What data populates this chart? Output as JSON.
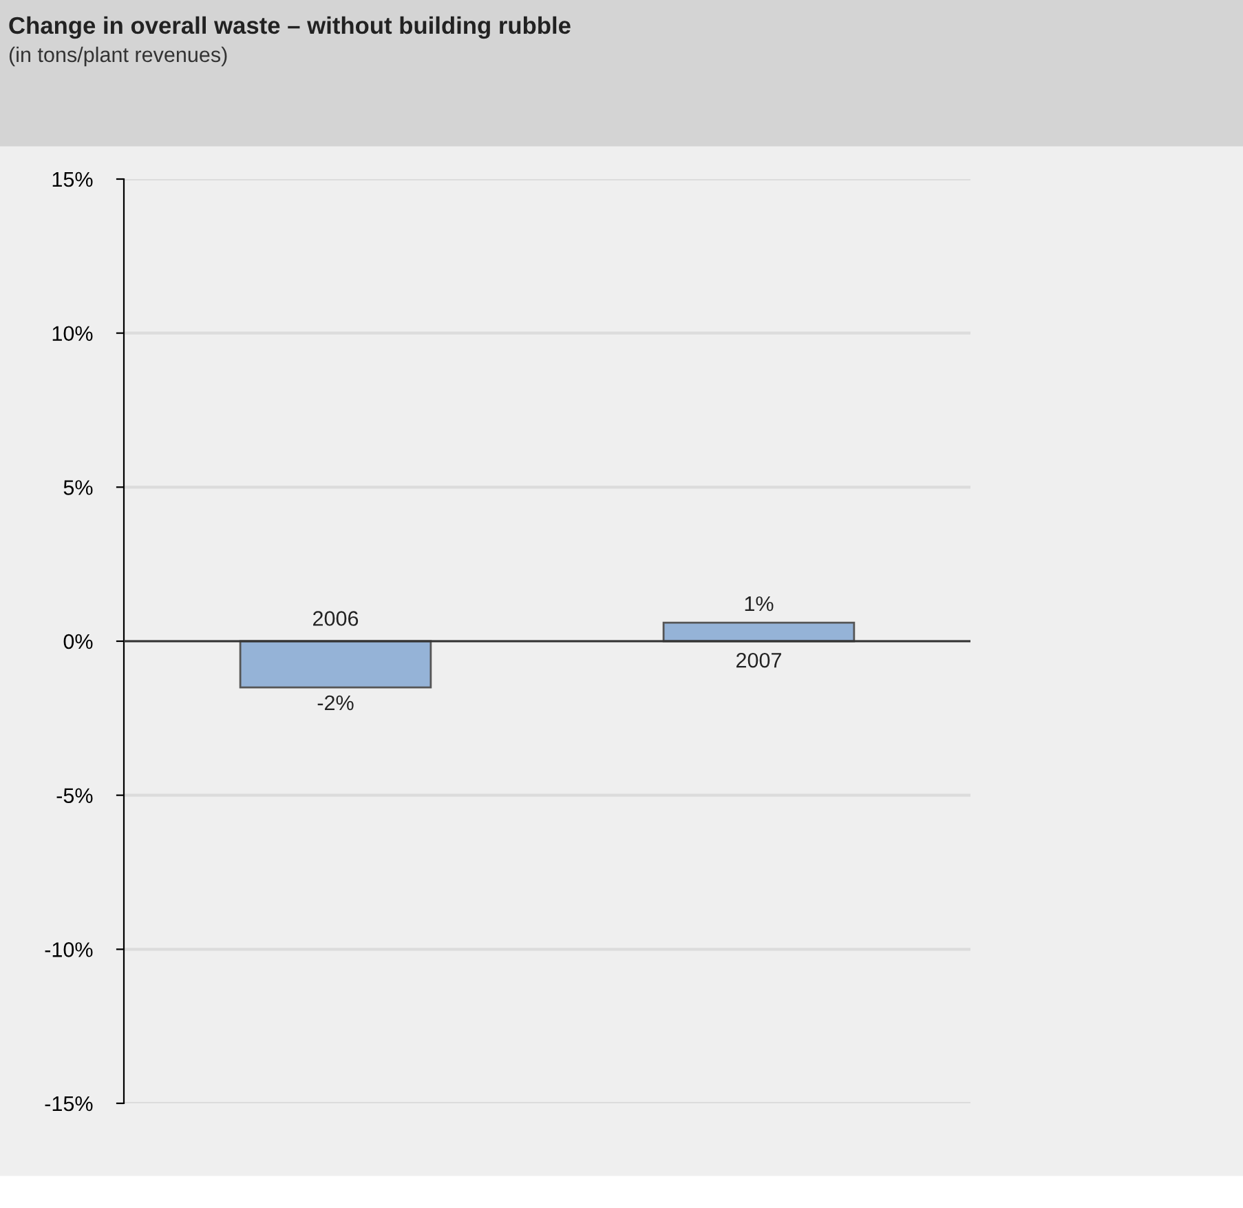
{
  "chart_data": {
    "type": "bar",
    "title": "Change in overall waste – without building rubble",
    "subtitle": "(in tons/plant revenues)",
    "categories": [
      "2006",
      "2007"
    ],
    "values": [
      -1.5,
      0.6
    ],
    "value_labels": [
      "-2%",
      "1%"
    ],
    "color": "#95b3d7",
    "ylim": [
      -15,
      15
    ],
    "yticks": [
      {
        "value": -15,
        "label": "-15%"
      },
      {
        "value": -10,
        "label": "-10%"
      },
      {
        "value": -5,
        "label": "-5%"
      },
      {
        "value": 0,
        "label": "0%"
      },
      {
        "value": 5,
        "label": "5%"
      },
      {
        "value": 10,
        "label": "10%"
      },
      {
        "value": 15,
        "label": "15%"
      }
    ],
    "grid": "y",
    "legend": false
  }
}
